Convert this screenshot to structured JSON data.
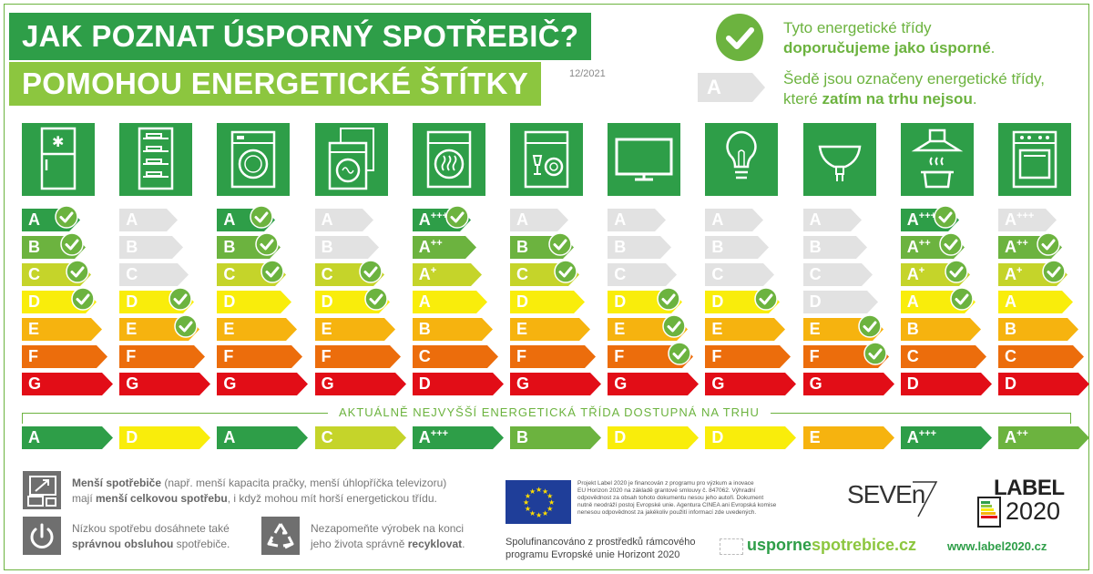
{
  "title_line1": "JAK POZNAT ÚSPORNÝ SPOTŘEBIČ?",
  "title_line2": "POMOHOU ENERGETICKÉ ŠTÍTKY",
  "date": "12/2021",
  "legend": {
    "recommended_line1": "Tyto energetické třídy",
    "recommended_bold": "doporučujeme jako úsporné",
    "recommended_end": ".",
    "grey_sample": "A",
    "grey_line1": "Šedě jsou označeny energetické třídy,",
    "grey_line2_pre": "které ",
    "grey_bold": "zatím na trhu nejsou",
    "grey_end": "."
  },
  "colors": {
    "A": "#2e9e48",
    "B": "#6cb33f",
    "C": "#c5d42a",
    "D": "#f9ed0b",
    "E": "#f6b30f",
    "F": "#ec6d0c",
    "G": "#e20d17",
    "grey": "#e2e2e2",
    "check": "#6cb33f"
  },
  "appliances": [
    {
      "icon": "fridge-icon",
      "labels": [
        "A",
        "B",
        "C",
        "D",
        "E",
        "F",
        "G"
      ],
      "grades": [
        "A",
        "B",
        "C",
        "D",
        "E",
        "F",
        "G"
      ],
      "grey": [
        false,
        false,
        false,
        false,
        false,
        false,
        false
      ],
      "checked": [
        true,
        true,
        true,
        true,
        false,
        false,
        false
      ],
      "available": "A",
      "available_grade": "A"
    },
    {
      "icon": "wine-cooler-icon",
      "labels": [
        "A",
        "B",
        "C",
        "D",
        "E",
        "F",
        "G"
      ],
      "grades": [
        "A",
        "B",
        "C",
        "D",
        "E",
        "F",
        "G"
      ],
      "grey": [
        true,
        true,
        true,
        false,
        false,
        false,
        false
      ],
      "checked": [
        false,
        false,
        false,
        true,
        true,
        false,
        false
      ],
      "available": "D",
      "available_grade": "D"
    },
    {
      "icon": "washing-machine-icon",
      "labels": [
        "A",
        "B",
        "C",
        "D",
        "E",
        "F",
        "G"
      ],
      "grades": [
        "A",
        "B",
        "C",
        "D",
        "E",
        "F",
        "G"
      ],
      "grey": [
        false,
        false,
        false,
        false,
        false,
        false,
        false
      ],
      "checked": [
        true,
        true,
        true,
        false,
        false,
        false,
        false
      ],
      "available": "A",
      "available_grade": "A"
    },
    {
      "icon": "washer-dryer-icon",
      "labels": [
        "A",
        "B",
        "C",
        "D",
        "E",
        "F",
        "G"
      ],
      "grades": [
        "A",
        "B",
        "C",
        "D",
        "E",
        "F",
        "G"
      ],
      "grey": [
        true,
        true,
        false,
        false,
        false,
        false,
        false
      ],
      "checked": [
        false,
        false,
        true,
        true,
        false,
        false,
        false
      ],
      "available": "C",
      "available_grade": "C"
    },
    {
      "icon": "tumble-dryer-icon",
      "labels": [
        "A+++",
        "A++",
        "A+",
        "A",
        "B",
        "C",
        "D"
      ],
      "grades": [
        "A",
        "B",
        "C",
        "D",
        "E",
        "F",
        "G"
      ],
      "grey": [
        false,
        false,
        false,
        false,
        false,
        false,
        false
      ],
      "checked": [
        true,
        false,
        false,
        false,
        false,
        false,
        false
      ],
      "available": "A+++",
      "available_grade": "A"
    },
    {
      "icon": "dishwasher-icon",
      "labels": [
        "A",
        "B",
        "C",
        "D",
        "E",
        "F",
        "G"
      ],
      "grades": [
        "A",
        "B",
        "C",
        "D",
        "E",
        "F",
        "G"
      ],
      "grey": [
        true,
        false,
        false,
        false,
        false,
        false,
        false
      ],
      "checked": [
        false,
        true,
        true,
        false,
        false,
        false,
        false
      ],
      "available": "B",
      "available_grade": "B"
    },
    {
      "icon": "television-icon",
      "labels": [
        "A",
        "B",
        "C",
        "D",
        "E",
        "F",
        "G"
      ],
      "grades": [
        "A",
        "B",
        "C",
        "D",
        "E",
        "F",
        "G"
      ],
      "grey": [
        true,
        true,
        true,
        false,
        false,
        false,
        false
      ],
      "checked": [
        false,
        false,
        false,
        true,
        true,
        true,
        false
      ],
      "available": "D",
      "available_grade": "D"
    },
    {
      "icon": "light-bulb-icon",
      "labels": [
        "A",
        "B",
        "C",
        "D",
        "E",
        "F",
        "G"
      ],
      "grades": [
        "A",
        "B",
        "C",
        "D",
        "E",
        "F",
        "G"
      ],
      "grey": [
        true,
        true,
        true,
        false,
        false,
        false,
        false
      ],
      "checked": [
        false,
        false,
        false,
        true,
        false,
        false,
        false
      ],
      "available": "D",
      "available_grade": "D"
    },
    {
      "icon": "spot-lamp-icon",
      "labels": [
        "A",
        "B",
        "C",
        "D",
        "E",
        "F",
        "G"
      ],
      "grades": [
        "A",
        "B",
        "C",
        "D",
        "E",
        "F",
        "G"
      ],
      "grey": [
        true,
        true,
        true,
        true,
        false,
        false,
        false
      ],
      "checked": [
        false,
        false,
        false,
        false,
        true,
        true,
        false
      ],
      "available": "E",
      "available_grade": "E"
    },
    {
      "icon": "cooker-hood-icon",
      "labels": [
        "A+++",
        "A++",
        "A+",
        "A",
        "B",
        "C",
        "D"
      ],
      "grades": [
        "A",
        "B",
        "C",
        "D",
        "E",
        "F",
        "G"
      ],
      "grey": [
        false,
        false,
        false,
        false,
        false,
        false,
        false
      ],
      "checked": [
        true,
        true,
        true,
        true,
        false,
        false,
        false
      ],
      "available": "A+++",
      "available_grade": "A"
    },
    {
      "icon": "oven-icon",
      "labels": [
        "A+++",
        "A++",
        "A+",
        "A",
        "B",
        "C",
        "D"
      ],
      "grades": [
        "A",
        "B",
        "C",
        "D",
        "E",
        "F",
        "G"
      ],
      "grey": [
        true,
        false,
        false,
        false,
        false,
        false,
        false
      ],
      "checked": [
        false,
        true,
        true,
        false,
        false,
        false,
        false
      ],
      "available": "A++",
      "available_grade": "B"
    }
  ],
  "available_title": "AKTUÁLNĚ NEJVYŠŠÍ ENERGETICKÁ TŘÍDA DOSTUPNÁ NA TRHU",
  "footer": {
    "tip1_bold1": "Menší spotřebiče",
    "tip1_text1": " (např. menší kapacita pračky, menší úhlopříčka televizoru)",
    "tip1_text2": "mají ",
    "tip1_bold2": "menší celkovou spotřebu",
    "tip1_text3": ", i když mohou mít horší energetickou třídu.",
    "tip2_text1": "Nízkou spotřebu dosáhnete také",
    "tip2_bold": "správnou obsluhou",
    "tip2_text2": " spotřebiče.",
    "tip3_text1": "Nezapomeňte výrobek na konci",
    "tip3_text2": "jeho života správně ",
    "tip3_bold": "recyklovat",
    "tip3_end": ".",
    "eu_text1": "Projekt Label 2020 je financován z programu pro výzkum a inovace",
    "eu_text2": "EU Horizon 2020 na základě grantové smlouvy č. 847062. Výhradní",
    "eu_text3": "odpovědnost za obsah tohoto dokumentu nesou jeho autoři. Dokument",
    "eu_text4": "nutně neodráží postoj Evropské unie. Agentura CINEA ani Evropská komise",
    "eu_text5": "nenesou odpovědnost za jakékoliv použití informací zde uvedených.",
    "spolu1": "Spolufinancováno z prostředků rámcového",
    "spolu2": "programu Evropské unie Horizont 2020",
    "seven": "SEVEn",
    "url_part1": "usporne",
    "url_part2": "spotrebice.cz",
    "label_word": "LABEL",
    "label_year": "2020",
    "website": "www.label2020.cz"
  }
}
